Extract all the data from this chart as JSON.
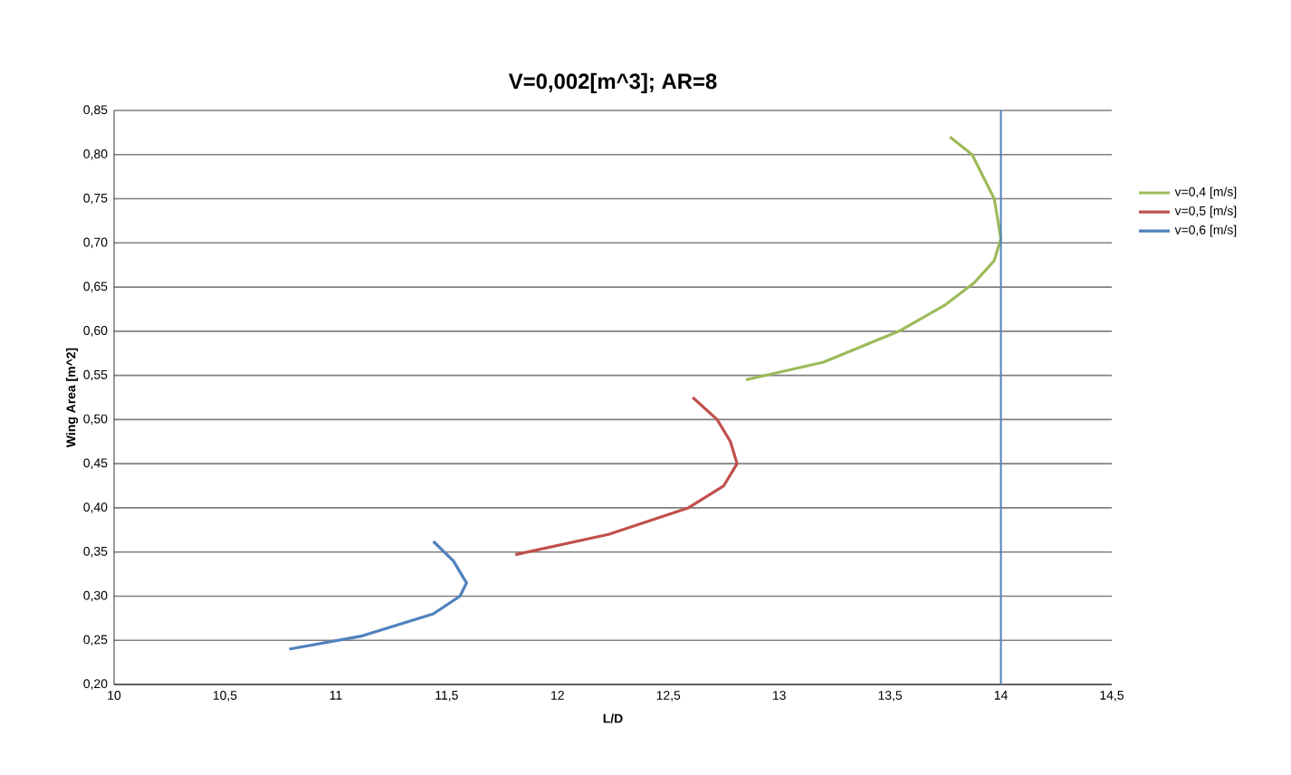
{
  "chart_data": {
    "type": "line",
    "title": "V=0,002[m^3]; AR=8",
    "xlabel": "L/D",
    "ylabel": "Wing Area  [m^2]",
    "xlim": [
      10,
      14.5
    ],
    "xticks": [
      {
        "value": 10,
        "label": "10"
      },
      {
        "value": 10.5,
        "label": "10,5"
      },
      {
        "value": 11,
        "label": "11"
      },
      {
        "value": 11.5,
        "label": "11,5"
      },
      {
        "value": 12,
        "label": "12"
      },
      {
        "value": 12.5,
        "label": "12,5"
      },
      {
        "value": 13,
        "label": "13"
      },
      {
        "value": 13.5,
        "label": "13,5"
      },
      {
        "value": 14,
        "label": "14"
      },
      {
        "value": 14.5,
        "label": "14,5"
      }
    ],
    "ylim": [
      0.2,
      0.85
    ],
    "yticks": [
      {
        "value": 0.2,
        "label": "0,20"
      },
      {
        "value": 0.25,
        "label": "0,25"
      },
      {
        "value": 0.3,
        "label": "0,30"
      },
      {
        "value": 0.35,
        "label": "0,35"
      },
      {
        "value": 0.4,
        "label": "0,40"
      },
      {
        "value": 0.45,
        "label": "0,45"
      },
      {
        "value": 0.5,
        "label": "0,50"
      },
      {
        "value": 0.55,
        "label": "0,55"
      },
      {
        "value": 0.6,
        "label": "0,60"
      },
      {
        "value": 0.65,
        "label": "0,65"
      },
      {
        "value": 0.7,
        "label": "0,70"
      },
      {
        "value": 0.75,
        "label": "0,75"
      },
      {
        "value": 0.8,
        "label": "0,80"
      },
      {
        "value": 0.85,
        "label": "0,85"
      }
    ],
    "grid": "y",
    "legend": "right",
    "marker": "none",
    "ref_lines": [
      {
        "axis": "x",
        "value": 14,
        "color": "#4f81bd"
      }
    ],
    "series": [
      {
        "name": "v=0,4 [m/s]",
        "color": "#9bbb59",
        "x": [
          12.85,
          13.2,
          13.54,
          13.75,
          13.88,
          13.97,
          14.0,
          13.97,
          13.87,
          13.77
        ],
        "values": [
          0.545,
          0.565,
          0.6,
          0.63,
          0.655,
          0.68,
          0.705,
          0.75,
          0.8,
          0.82
        ]
      },
      {
        "name": "v=0,5 [m/s]",
        "color": "#c0504d",
        "x": [
          11.81,
          12.23,
          12.59,
          12.75,
          12.81,
          12.78,
          12.72,
          12.61
        ],
        "values": [
          0.347,
          0.37,
          0.4,
          0.425,
          0.45,
          0.475,
          0.5,
          0.525
        ]
      },
      {
        "name": "v=0,6 [m/s]",
        "color": "#4f81bd",
        "x": [
          10.79,
          11.12,
          11.44,
          11.56,
          11.59,
          11.53,
          11.44
        ],
        "values": [
          0.24,
          0.255,
          0.28,
          0.3,
          0.315,
          0.34,
          0.362
        ]
      }
    ]
  }
}
